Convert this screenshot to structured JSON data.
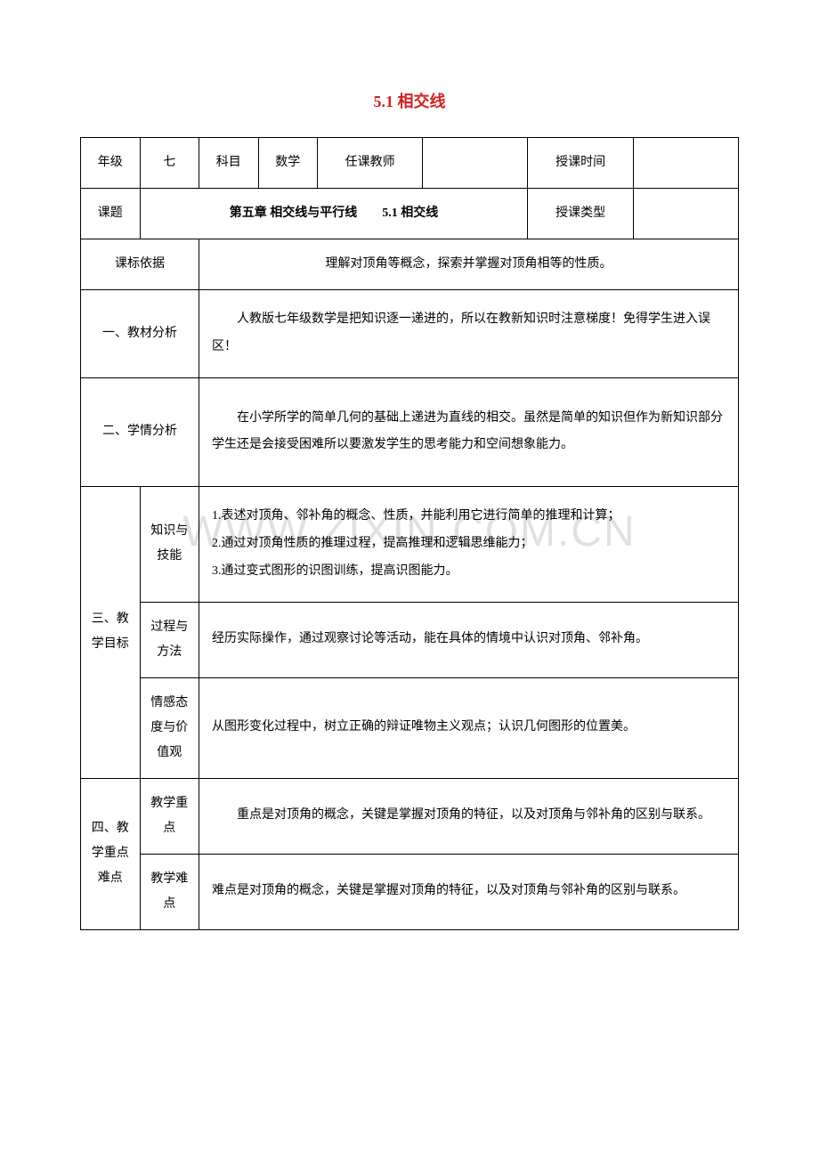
{
  "title": {
    "text": "5.1 相交线",
    "color": "#d6201f",
    "fontsize": 18
  },
  "watermark": "WWW.ZIXIN.COM.CN",
  "table": {
    "border_color": "#000000",
    "font_size": 14,
    "col_widths_pct": [
      9,
      9,
      9,
      9,
      16,
      16,
      16,
      16
    ],
    "row1": {
      "c1": "年级",
      "c2": "七",
      "c3": "科目",
      "c4": "数学",
      "c5": "任课教师",
      "c6": "",
      "c7": "授课时间",
      "c8": ""
    },
    "row2": {
      "label": "课题",
      "content": "第五章 相交线与平行线　　5.1 相交线",
      "type_label": "授课类型",
      "type_value": ""
    },
    "row3": {
      "label": "课标依据",
      "content": "理解对顶角等概念，探索并掌握对顶角相等的性质。"
    },
    "row4": {
      "label": "一、教材分析",
      "content": "人教版七年级数学是把知识逐一递进的，所以在教新知识时注意梯度！免得学生进入误区！"
    },
    "row5": {
      "label": "二、学情分析",
      "content": "　　在小学所学的简单几何的基础上递进为直线的相交。虽然是简单的知识但作为新知识部分学生还是会接受困难所以要激发学生的思考能力和空间想象能力。"
    },
    "objectives": {
      "group_label": "三、教学目标",
      "r1": {
        "sub": "知识与技能",
        "content": "1.表述对顶角、邻补角的概念、性质，并能利用它进行简单的推理和计算；\n2.通过对顶角性质的推理过程，提高推理和逻辑思维能力；\n3.通过变式图形的识图训练，提高识图能力。"
      },
      "r2": {
        "sub": "过程与方法",
        "content": "经历实际操作，通过观察讨论等活动，能在具体的情境中认识对顶角、邻补角。"
      },
      "r3": {
        "sub": "情感态度与价值观",
        "content": "从图形变化过程中，树立正确的辩证唯物主义观点；认识几何图形的位置美。"
      }
    },
    "keypoints": {
      "group_label": "四、教学重点难点",
      "r1": {
        "sub": "教学重点",
        "content": "　　重点是对顶角的概念，关键是掌握对顶角的特征，以及对顶角与邻补角的区别与联系。"
      },
      "r2": {
        "sub": "教学难点",
        "content": "难点是对顶角的概念，关键是掌握对顶角的特征，以及对顶角与邻补角的区别与联系。"
      }
    }
  }
}
